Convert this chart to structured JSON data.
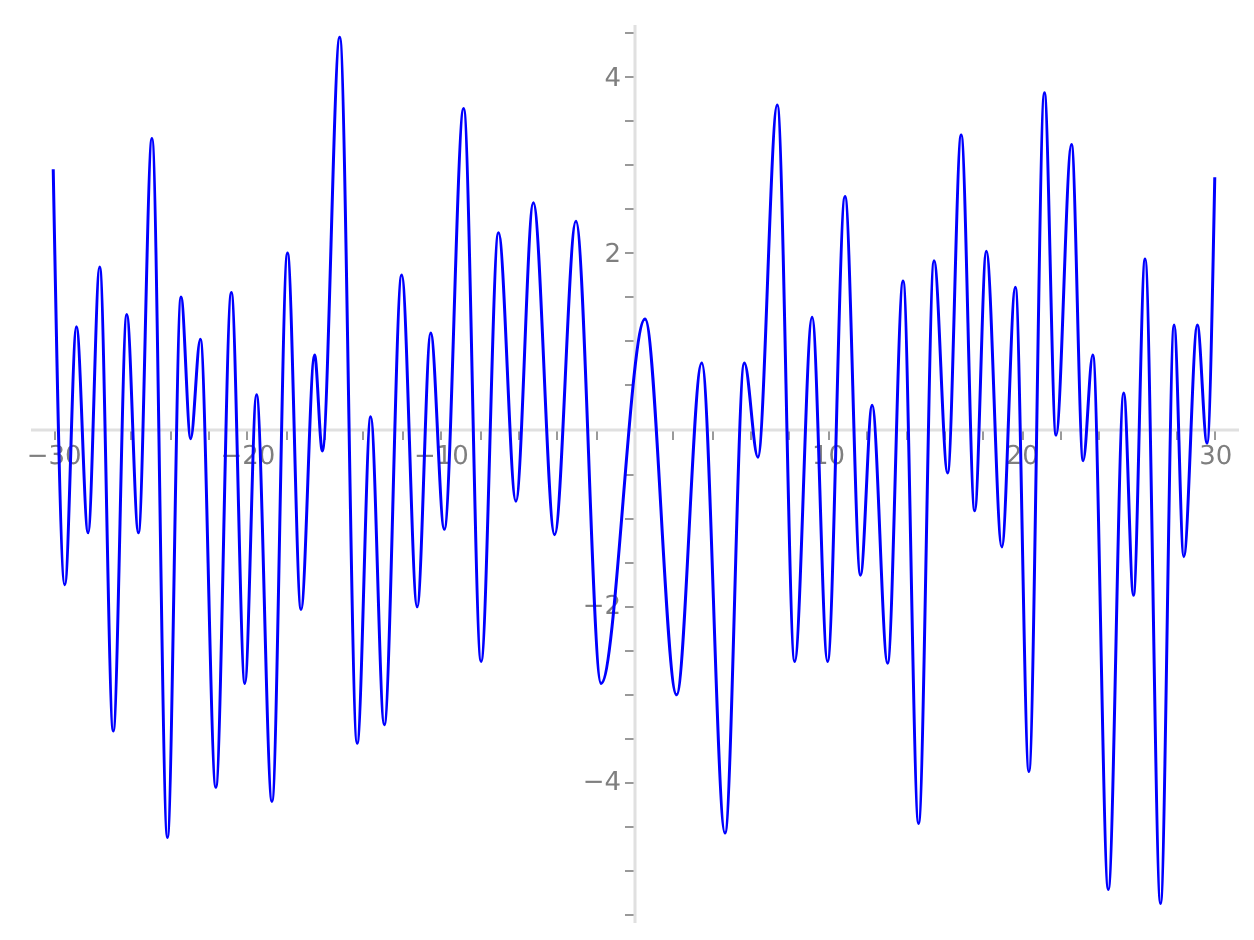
{
  "chart_data": {
    "type": "line",
    "grid": false,
    "line_style": "solid",
    "x": [
      -30,
      -29.4,
      -28.8,
      -28.2,
      -27.6,
      -26.9,
      -26.2,
      -25.6,
      -24.9,
      -24.1,
      -23.4,
      -22.9,
      -22.4,
      -21.6,
      -20.8,
      -20.1,
      -19.5,
      -18.7,
      -17.9,
      -17.2,
      -16.5,
      -16.1,
      -15.2,
      -14.3,
      -13.6,
      -12.9,
      -12.0,
      -11.2,
      -10.5,
      -9.8,
      -8.8,
      -7.9,
      -7.0,
      -6.1,
      -5.2,
      -4.1,
      -3.0,
      -1.7,
      0.57,
      2.2,
      3.5,
      4.7,
      5.7,
      6.4,
      7.4,
      8.3,
      9.2,
      10.0,
      10.9,
      11.7,
      12.3,
      13.1,
      13.9,
      14.7,
      15.5,
      16.2,
      16.9,
      17.6,
      18.2,
      19.0,
      19.7,
      20.4,
      21.2,
      21.8,
      22.6,
      23.2,
      23.7,
      24.5,
      25.3,
      25.8,
      26.4,
      27.2,
      27.9,
      28.4,
      29.1,
      29.6,
      30
    ],
    "series": [
      {
        "color": "#0000ff",
        "values": [
          2.95,
          -1.77,
          1.16,
          -1.18,
          1.84,
          -3.43,
          1.3,
          -1.18,
          3.3,
          -4.64,
          1.5,
          -0.11,
          1.02,
          -4.07,
          1.55,
          -2.89,
          0.39,
          -4.23,
          2.0,
          -2.05,
          0.84,
          -0.25,
          4.45,
          -3.57,
          0.14,
          -3.36,
          1.75,
          -2.02,
          1.09,
          -1.14,
          3.64,
          -2.64,
          2.23,
          -0.82,
          2.57,
          -1.2,
          2.36,
          -2.89,
          1.25,
          -3.02,
          0.75,
          -4.59,
          0.75,
          -0.32,
          3.68,
          -2.64,
          1.27,
          -2.64,
          2.64,
          -1.66,
          0.27,
          -2.66,
          1.68,
          -4.48,
          1.91,
          -0.5,
          3.34,
          -0.93,
          2.02,
          -1.34,
          1.61,
          -3.89,
          3.82,
          -0.07,
          3.23,
          -0.36,
          0.84,
          -5.23,
          0.41,
          -1.89,
          1.93,
          -5.39,
          1.18,
          -1.45,
          1.18,
          -0.16,
          2.86
        ]
      }
    ],
    "xlim": [
      -31.2,
      31.2
    ],
    "ylim": [
      -5.6,
      4.6
    ],
    "xticks": [
      -30,
      {
        "value": -28,
        "label": null
      },
      {
        "value": -26,
        "label": null
      },
      {
        "value": -24,
        "label": null
      },
      {
        "value": -22,
        "label": null
      },
      -20,
      {
        "value": -18,
        "label": null
      },
      {
        "value": -16,
        "label": null
      },
      {
        "value": -14,
        "label": null
      },
      {
        "value": -12,
        "label": null
      },
      -10,
      {
        "value": -8,
        "label": null
      },
      {
        "value": -6,
        "label": null
      },
      {
        "value": -4,
        "label": null
      },
      {
        "value": -2,
        "label": null
      },
      {
        "value": 2,
        "label": null
      },
      {
        "value": 4,
        "label": null
      },
      {
        "value": 6,
        "label": null
      },
      {
        "value": 8,
        "label": null
      },
      10,
      {
        "value": 12,
        "label": null
      },
      {
        "value": 14,
        "label": null
      },
      {
        "value": 16,
        "label": null
      },
      {
        "value": 18,
        "label": null
      },
      20,
      {
        "value": 22,
        "label": null
      },
      {
        "value": 24,
        "label": null
      },
      {
        "value": 26,
        "label": null
      },
      {
        "value": 28,
        "label": null
      },
      30
    ],
    "yticks": [
      {
        "value": -5.5,
        "label": null
      },
      {
        "value": -5,
        "label": null
      },
      {
        "value": -4.5,
        "label": null
      },
      -4,
      {
        "value": -3.5,
        "label": null
      },
      {
        "value": -3,
        "label": null
      },
      {
        "value": -2.5,
        "label": null
      },
      -2,
      {
        "value": -1.5,
        "label": null
      },
      {
        "value": -1,
        "label": null
      },
      {
        "value": -0.5,
        "label": null
      },
      {
        "value": 0.5,
        "label": null
      },
      {
        "value": 1,
        "label": null
      },
      {
        "value": 1.5,
        "label": null
      },
      2,
      {
        "value": 2.5,
        "label": null
      },
      {
        "value": 3,
        "label": null
      },
      {
        "value": 3.5,
        "label": null
      },
      4,
      {
        "value": 4.5,
        "label": null
      }
    ]
  }
}
